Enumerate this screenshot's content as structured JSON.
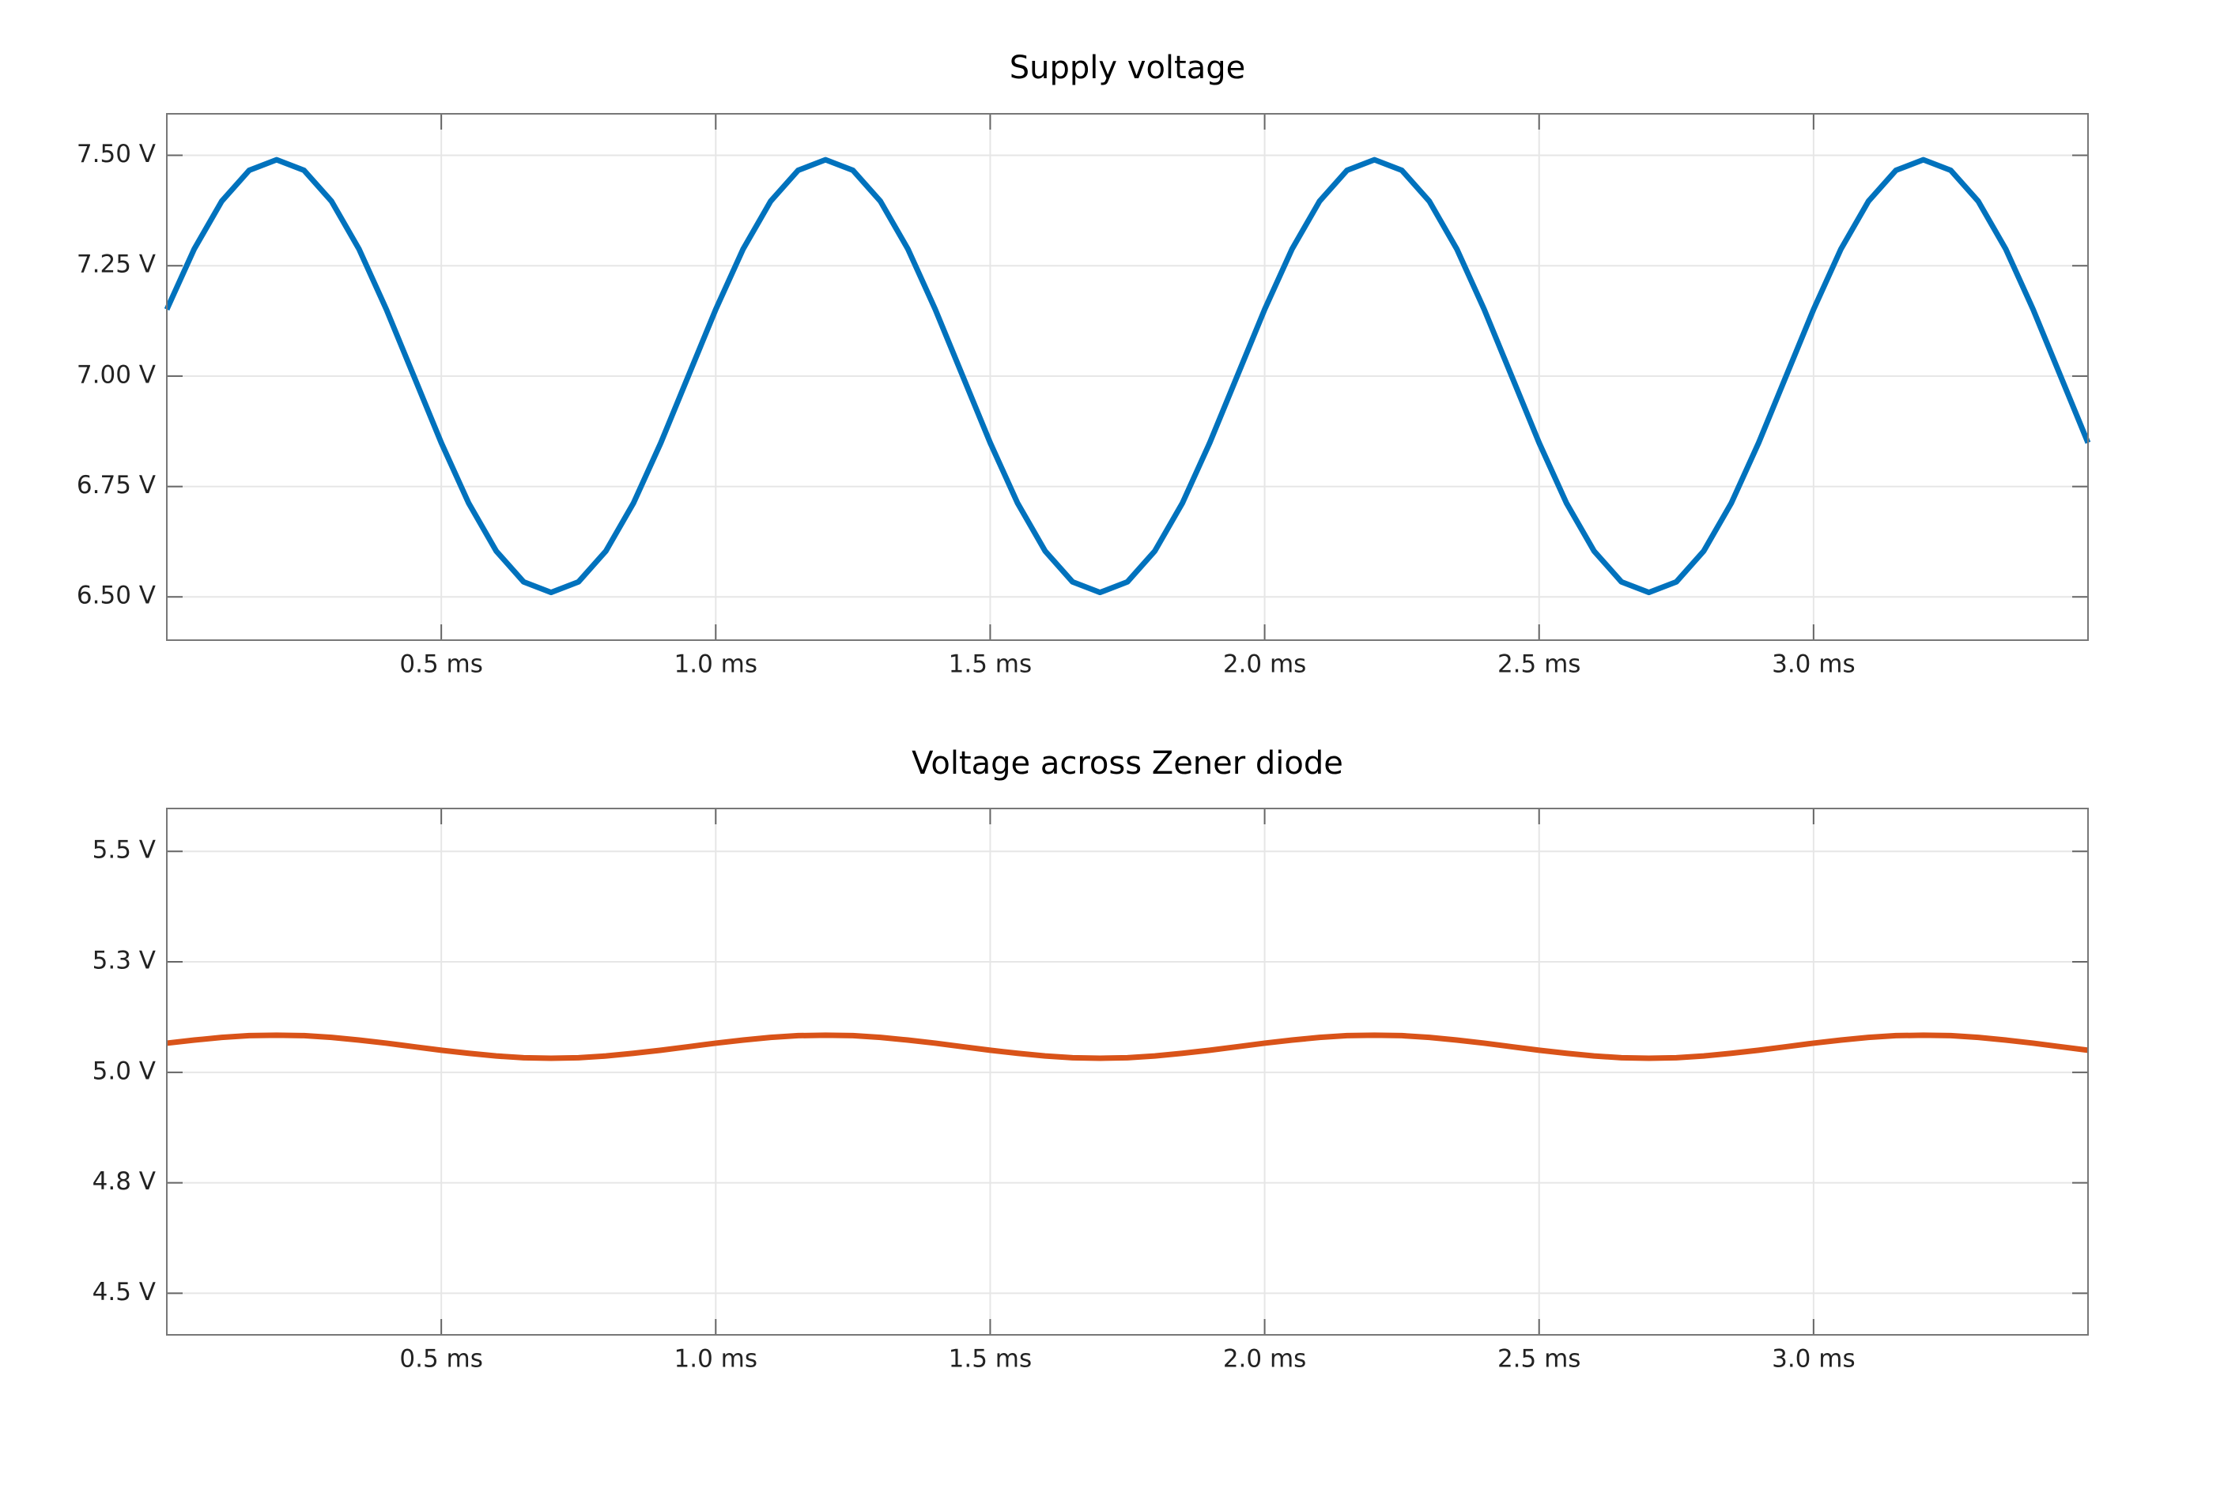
{
  "chart_data": [
    {
      "type": "line",
      "title": "Supply voltage",
      "x": [
        0,
        0.05,
        0.1,
        0.15,
        0.2,
        0.25,
        0.3,
        0.35,
        0.4,
        0.45,
        0.5,
        0.55,
        0.6,
        0.65,
        0.7,
        0.75,
        0.8,
        0.85,
        0.9,
        0.95,
        1.0,
        1.05,
        1.1,
        1.15,
        1.2,
        1.25,
        1.3,
        1.35,
        1.4,
        1.45,
        1.5,
        1.55,
        1.6,
        1.65,
        1.7,
        1.75,
        1.8,
        1.85,
        1.9,
        1.95,
        2.0,
        2.05,
        2.1,
        2.15,
        2.2,
        2.25,
        2.3,
        2.35,
        2.4,
        2.45,
        2.5,
        2.55,
        2.6,
        2.65,
        2.7,
        2.75,
        2.8,
        2.85,
        2.9,
        2.95,
        3.0,
        3.05,
        3.1,
        3.15,
        3.2,
        3.25,
        3.3,
        3.35,
        3.4,
        3.45,
        3.5
      ],
      "values": [
        7.151,
        7.288,
        7.396,
        7.466,
        7.49,
        7.466,
        7.396,
        7.288,
        7.151,
        7.0,
        6.849,
        6.712,
        6.604,
        6.534,
        6.51,
        6.534,
        6.604,
        6.712,
        6.849,
        7.0,
        7.151,
        7.288,
        7.396,
        7.466,
        7.49,
        7.466,
        7.396,
        7.288,
        7.151,
        7.0,
        6.849,
        6.712,
        6.604,
        6.534,
        6.51,
        6.534,
        6.604,
        6.712,
        6.849,
        7.0,
        7.151,
        7.288,
        7.396,
        7.466,
        7.49,
        7.466,
        7.396,
        7.288,
        7.151,
        7.0,
        6.849,
        6.712,
        6.604,
        6.534,
        6.51,
        6.534,
        6.604,
        6.712,
        6.849,
        7.0,
        7.151,
        7.288,
        7.396,
        7.466,
        7.49,
        7.466,
        7.396,
        7.288,
        7.151,
        7.0,
        6.849
      ],
      "color": "#0072bd",
      "xlim": [
        0,
        3.5
      ],
      "xticks": [
        {
          "value": 0.5,
          "label": "0.5 ms"
        },
        {
          "value": 1.0,
          "label": "1.0 ms"
        },
        {
          "value": 1.5,
          "label": "1.5 ms"
        },
        {
          "value": 2.0,
          "label": "2.0 ms"
        },
        {
          "value": 2.5,
          "label": "2.5 ms"
        },
        {
          "value": 3.0,
          "label": "3.0 ms"
        }
      ],
      "ylim": [
        6.402,
        7.594
      ],
      "yticks": [
        {
          "value": 6.5,
          "label": "6.50 V"
        },
        {
          "value": 6.75,
          "label": "6.75 V"
        },
        {
          "value": 7.0,
          "label": "7.00 V"
        },
        {
          "value": 7.25,
          "label": "7.25 V"
        },
        {
          "value": 7.5,
          "label": "7.50 V"
        }
      ],
      "grid": true
    },
    {
      "type": "line",
      "title": "Voltage across Zener diode",
      "x": [
        0,
        0.05,
        0.1,
        0.15,
        0.2,
        0.25,
        0.3,
        0.35,
        0.4,
        0.45,
        0.5,
        0.55,
        0.6,
        0.65,
        0.7,
        0.75,
        0.8,
        0.85,
        0.9,
        0.95,
        1.0,
        1.05,
        1.1,
        1.15,
        1.2,
        1.25,
        1.3,
        1.35,
        1.4,
        1.45,
        1.5,
        1.55,
        1.6,
        1.65,
        1.7,
        1.75,
        1.8,
        1.85,
        1.9,
        1.95,
        2.0,
        2.05,
        2.1,
        2.15,
        2.2,
        2.25,
        2.3,
        2.35,
        2.4,
        2.45,
        2.5,
        2.55,
        2.6,
        2.65,
        2.7,
        2.75,
        2.8,
        2.85,
        2.9,
        2.95,
        3.0,
        3.05,
        3.1,
        3.15,
        3.2,
        3.25,
        3.3,
        3.35,
        3.4,
        3.45,
        3.5
      ],
      "values": [
        5.066,
        5.073,
        5.079,
        5.083,
        5.084,
        5.083,
        5.079,
        5.073,
        5.066,
        5.058,
        5.05,
        5.043,
        5.037,
        5.033,
        5.032,
        5.033,
        5.037,
        5.043,
        5.05,
        5.058,
        5.066,
        5.073,
        5.079,
        5.083,
        5.084,
        5.083,
        5.079,
        5.073,
        5.066,
        5.058,
        5.05,
        5.043,
        5.037,
        5.033,
        5.032,
        5.033,
        5.037,
        5.043,
        5.05,
        5.058,
        5.066,
        5.073,
        5.079,
        5.083,
        5.084,
        5.083,
        5.079,
        5.073,
        5.066,
        5.058,
        5.05,
        5.043,
        5.037,
        5.033,
        5.032,
        5.033,
        5.037,
        5.043,
        5.05,
        5.058,
        5.066,
        5.073,
        5.079,
        5.083,
        5.084,
        5.083,
        5.079,
        5.073,
        5.066,
        5.058,
        5.05
      ],
      "color": "#d95319",
      "xlim": [
        0,
        3.5
      ],
      "xticks": [
        {
          "value": 0.5,
          "label": "0.5 ms"
        },
        {
          "value": 1.0,
          "label": "1.0 ms"
        },
        {
          "value": 1.5,
          "label": "1.5 ms"
        },
        {
          "value": 2.0,
          "label": "2.0 ms"
        },
        {
          "value": 2.5,
          "label": "2.5 ms"
        },
        {
          "value": 3.0,
          "label": "3.0 ms"
        }
      ],
      "ylim": [
        4.406,
        5.597
      ],
      "yticks": [
        {
          "value": 4.5,
          "label": "4.5 V"
        },
        {
          "value": 4.75,
          "label": "4.8 V"
        },
        {
          "value": 5.0,
          "label": "5.0 V"
        },
        {
          "value": 5.25,
          "label": "5.3 V"
        },
        {
          "value": 5.5,
          "label": "5.5 V"
        }
      ],
      "grid": true
    }
  ]
}
